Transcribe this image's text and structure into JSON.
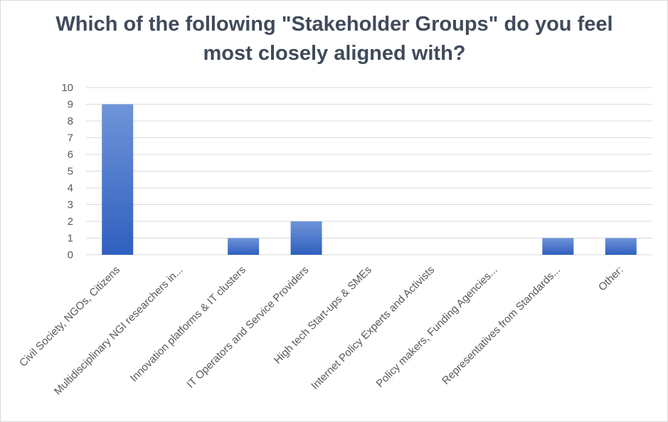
{
  "chart_data": {
    "type": "bar",
    "title": "Which of the following \"Stakeholder Groups\" do you feel most closely aligned with?",
    "categories": [
      "Civil Society, NGOs, Citizens",
      "Multidisciplinary NGI researchers in...",
      "Innovation platforms & IT clusters",
      "IT Operators and Service Providers",
      "High tech Start-ups & SMEs",
      "Internet Policy Experts and Activists",
      "Policy makers, Funding Agencies...",
      "Representatives from Standards...",
      "Other:"
    ],
    "values": [
      9,
      0,
      1,
      2,
      0,
      0,
      0,
      1,
      1
    ],
    "yticks": [
      "0",
      "1",
      "2",
      "3",
      "4",
      "5",
      "6",
      "7",
      "8",
      "9",
      "10"
    ],
    "ylim": [
      0,
      10
    ],
    "xlabel": "",
    "ylabel": "",
    "grid": true,
    "legend": "none",
    "bar_color_top": "#6f94d8",
    "bar_color_bottom": "#2f5fbf",
    "gridline_color": "#d9d9d9",
    "title_color": "#404a5a"
  }
}
